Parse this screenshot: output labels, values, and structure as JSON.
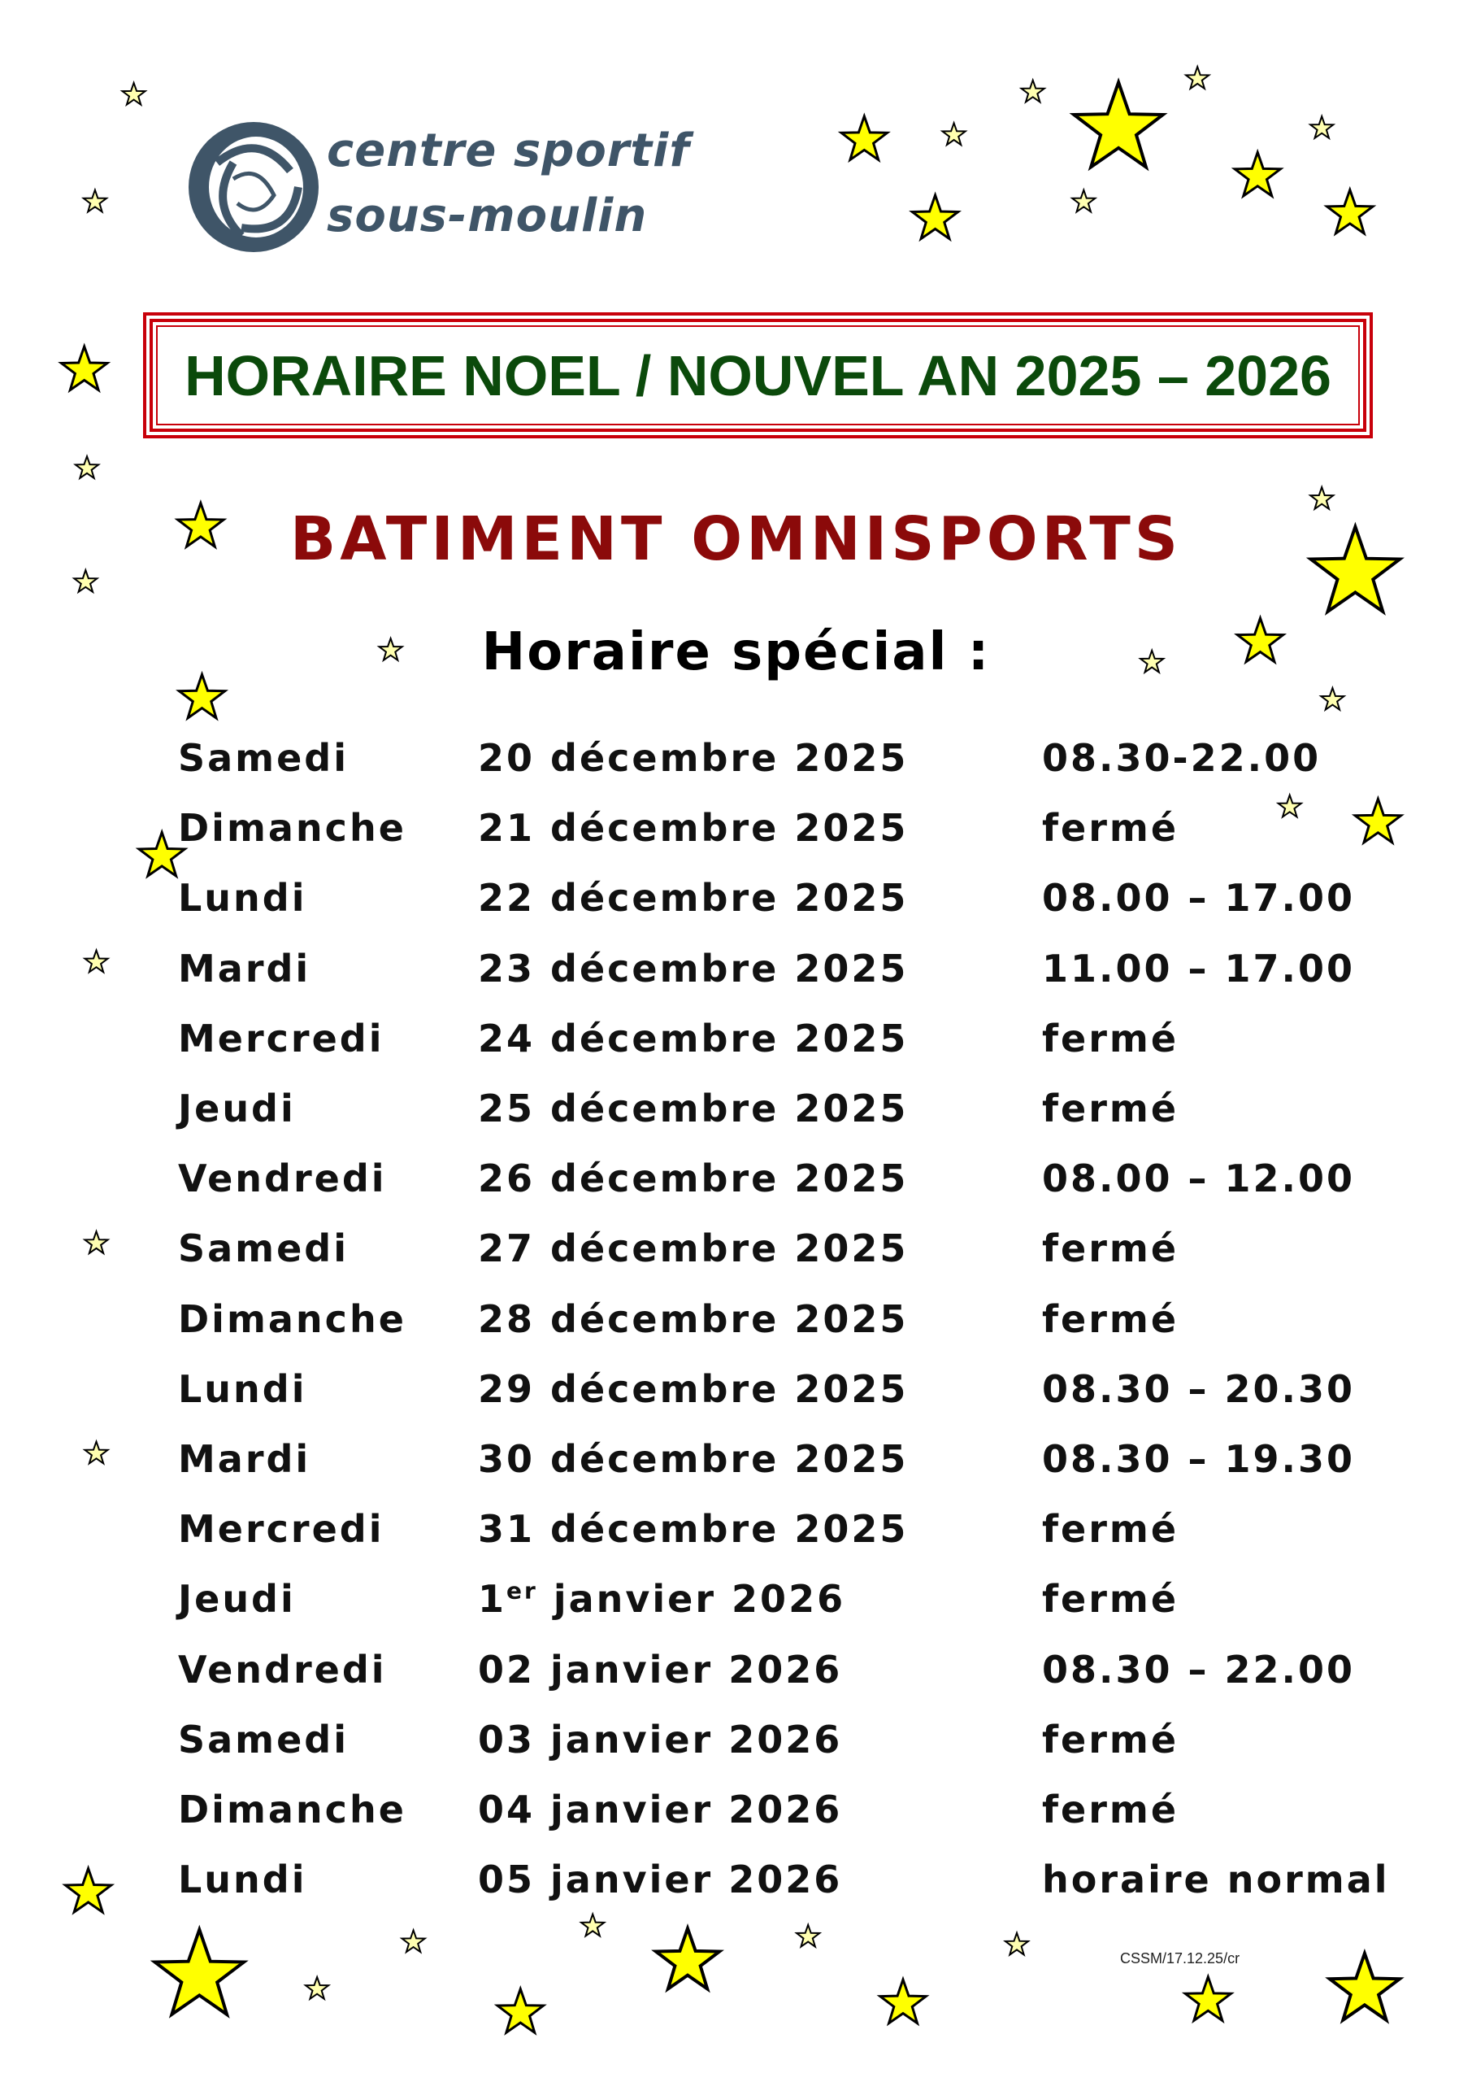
{
  "logo": {
    "line1": "centre sportif",
    "line2": "sous-moulin",
    "color": "#3f5568"
  },
  "title": "HORAIRE NOEL / NOUVEL AN 2025 – 2026",
  "subtitle": "BATIMENT OMNISPORTS",
  "heading": "Horaire spécial :",
  "schedule": [
    {
      "day": "Samedi",
      "date": "20 décembre 2025",
      "hours": "08.30-22.00"
    },
    {
      "day": "Dimanche",
      "date": "21 décembre 2025",
      "hours": "fermé"
    },
    {
      "day": "Lundi",
      "date": "22 décembre 2025",
      "hours": "08.00 – 17.00"
    },
    {
      "day": "Mardi",
      "date": "23 décembre 2025",
      "hours": "11.00 – 17.00"
    },
    {
      "day": "Mercredi",
      "date": "24 décembre 2025",
      "hours": "fermé"
    },
    {
      "day": "Jeudi",
      "date": "25 décembre 2025",
      "hours": "fermé"
    },
    {
      "day": "Vendredi",
      "date": "26 décembre 2025",
      "hours": "08.00 – 12.00"
    },
    {
      "day": "Samedi",
      "date": "27 décembre 2025",
      "hours": "fermé"
    },
    {
      "day": "Dimanche",
      "date": "28 décembre 2025",
      "hours": "fermé"
    },
    {
      "day": "Lundi",
      "date": "29 décembre 2025",
      "hours": "08.30 – 20.30"
    },
    {
      "day": "Mardi",
      "date": "30 décembre 2025",
      "hours": "08.30 – 19.30"
    },
    {
      "day": "Mercredi",
      "date": "31 décembre 2025",
      "hours": "fermé"
    },
    {
      "day": "Jeudi",
      "date": "1",
      "date_sup": "er",
      "date_rest": " janvier 2026",
      "hours": "fermé"
    },
    {
      "day": "Vendredi",
      "date": "02 janvier 2026",
      "hours": "08.30 – 22.00"
    },
    {
      "day": "Samedi",
      "date": "03 janvier 2026",
      "hours": "fermé"
    },
    {
      "day": "Dimanche",
      "date": "04 janvier 2026",
      "hours": "fermé"
    },
    {
      "day": "Lundi",
      "date": "05 janvier 2026",
      "hours": "horaire normal"
    }
  ],
  "footer": "CSSM/17.12.25/cr",
  "colors": {
    "title": "#0b4a0b",
    "frame": "#c8000a",
    "subtitle": "#8b0a0a",
    "star": "#ffff00"
  }
}
